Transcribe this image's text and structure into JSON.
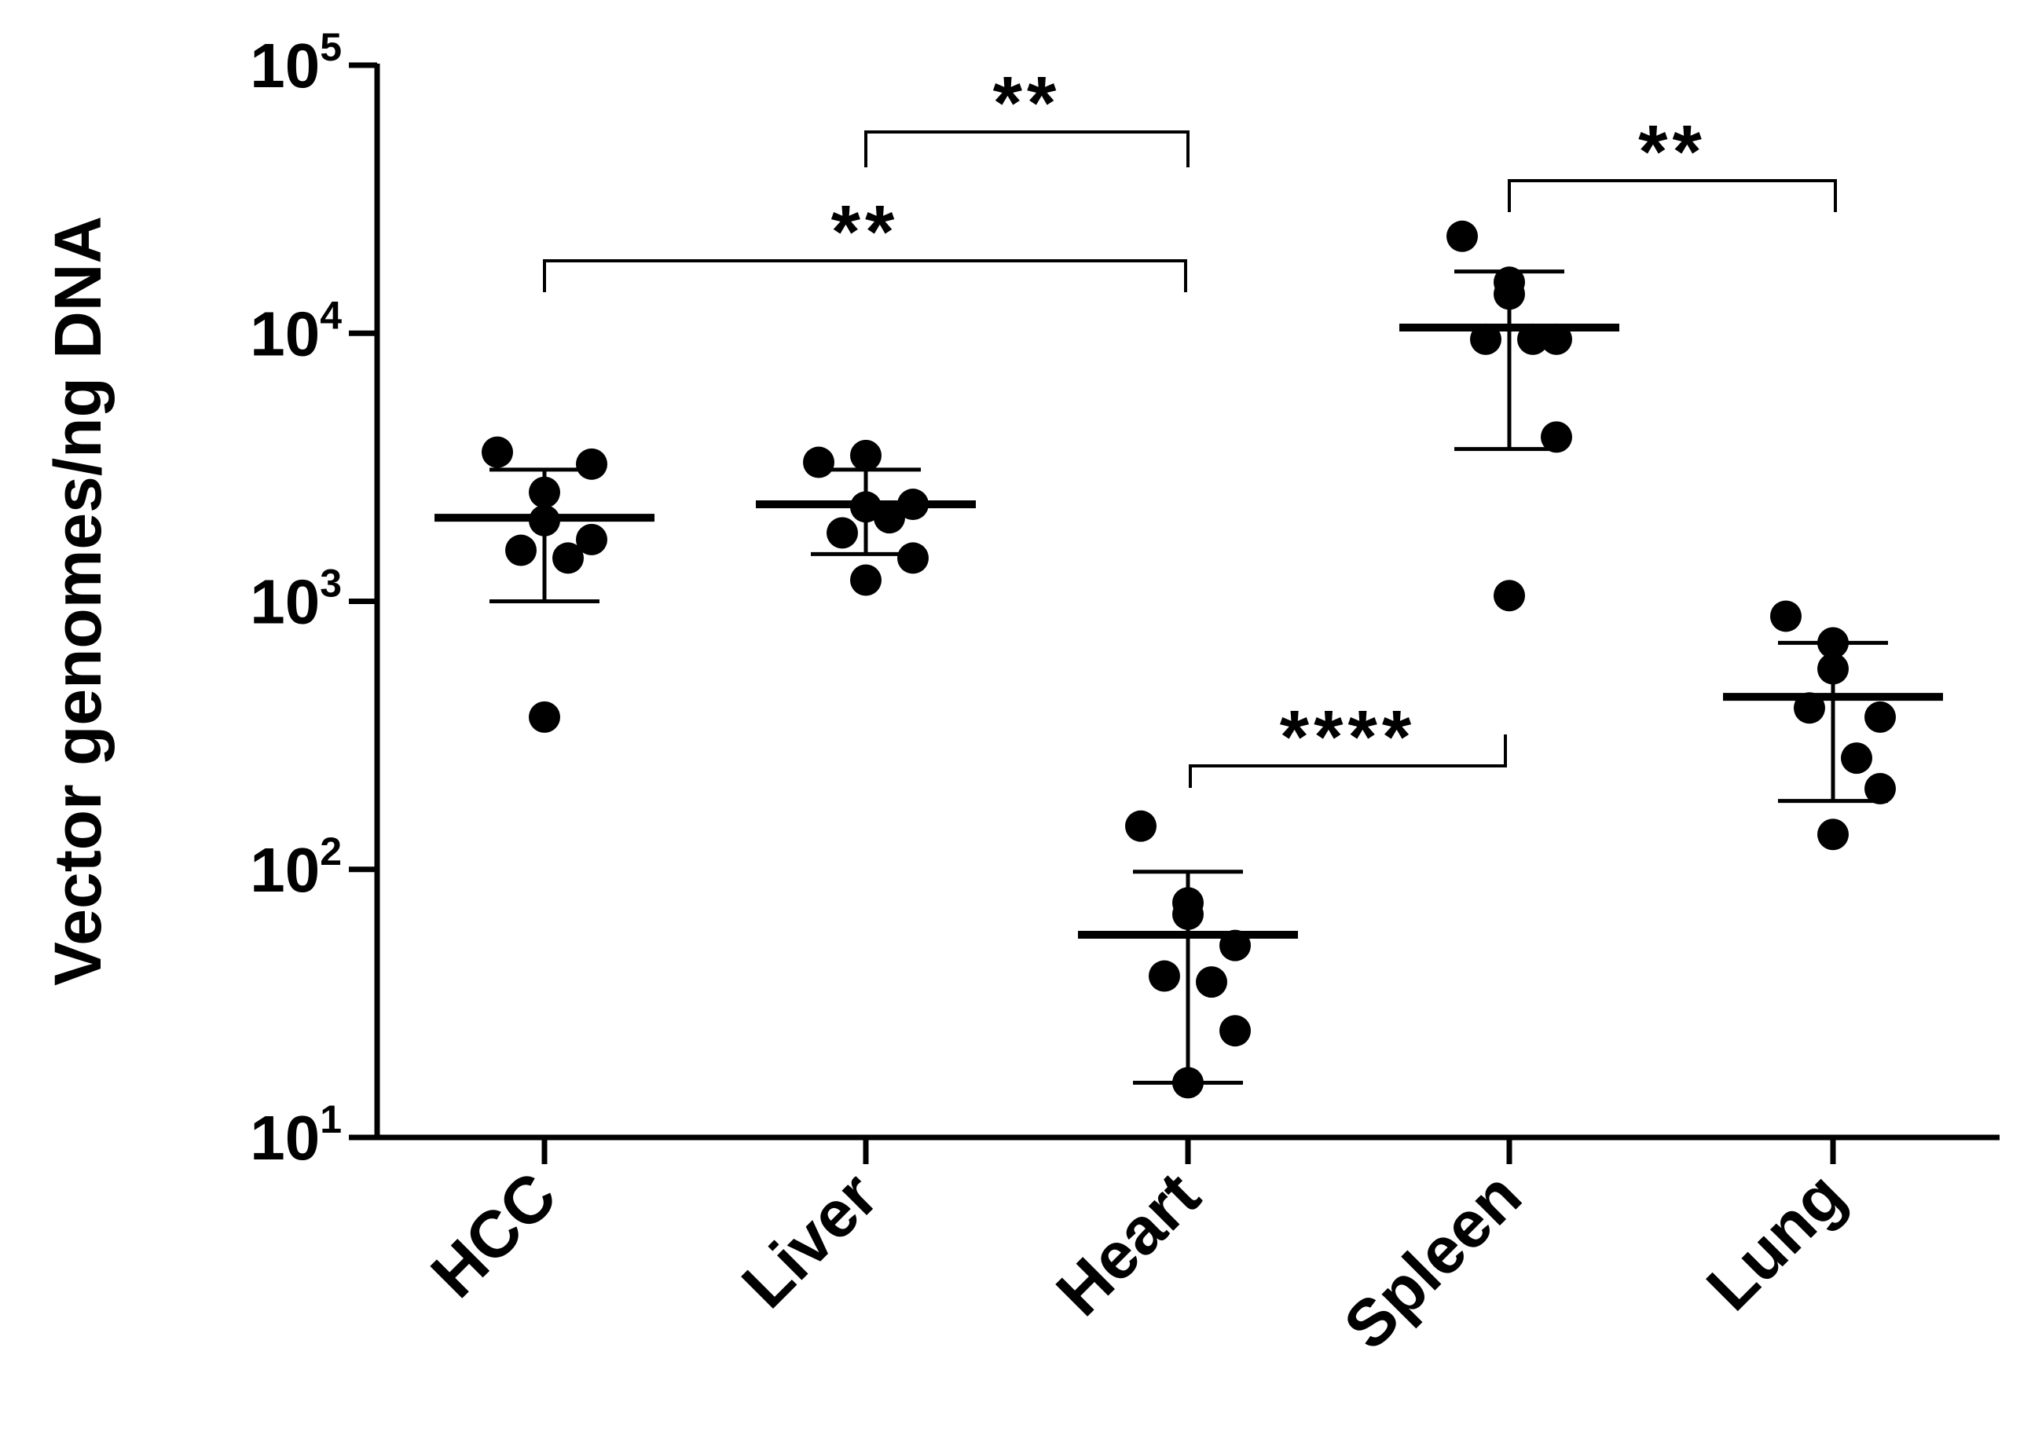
{
  "chart_data": {
    "type": "scatter",
    "subtype": "dot-plot-with-mean-and-sd",
    "title": "",
    "ylabel": "Vector genomes/ng DNA",
    "xlabel": "",
    "yscale": "log10",
    "ylim": [
      10,
      100000
    ],
    "y_ticks": [
      {
        "value": 10,
        "base": "10",
        "exp": "1"
      },
      {
        "value": 100,
        "base": "10",
        "exp": "2"
      },
      {
        "value": 1000,
        "base": "10",
        "exp": "3"
      },
      {
        "value": 10000,
        "base": "10",
        "exp": "4"
      },
      {
        "value": 100000,
        "base": "10",
        "exp": "5"
      }
    ],
    "categories": [
      "HCC",
      "Liver",
      "Heart",
      "Spleen",
      "Lung"
    ],
    "groups": [
      {
        "name": "HCC",
        "points": [
          3600,
          2000,
          2550,
          3250,
          1550,
          1450,
          1700,
          370
        ],
        "mean": 2050,
        "sd_low": 1000,
        "sd_high": 3100
      },
      {
        "name": "Liver",
        "points": [
          3300,
          3500,
          2250,
          2300,
          1800,
          2050,
          1450,
          1200
        ],
        "mean": 2300,
        "sd_low": 1500,
        "sd_high": 3100
      },
      {
        "name": "Heart",
        "points": [
          145,
          75,
          68,
          52,
          40,
          38,
          25,
          16
        ],
        "mean": 57,
        "sd_low": 16,
        "sd_high": 98
      },
      {
        "name": "Spleen",
        "points": [
          23000,
          15500,
          14000,
          9500,
          9500,
          9500,
          4100,
          1050
        ],
        "mean": 10500,
        "sd_low": 3700,
        "sd_high": 17000
      },
      {
        "name": "Lung",
        "points": [
          880,
          700,
          560,
          370,
          400,
          260,
          200,
          135
        ],
        "mean": 440,
        "sd_low": 180,
        "sd_high": 700
      }
    ],
    "comparisons": [
      {
        "from": "Liver",
        "to": "Heart",
        "label": "**"
      },
      {
        "from": "HCC",
        "to": "Heart",
        "label": "**"
      },
      {
        "from": "Spleen",
        "to": "Lung",
        "label": "**"
      },
      {
        "from": "Heart",
        "to": "Spleen",
        "label": "****"
      }
    ],
    "colors": {
      "marks": "#000000",
      "background": "#ffffff"
    },
    "grid": false,
    "legend": "none"
  }
}
